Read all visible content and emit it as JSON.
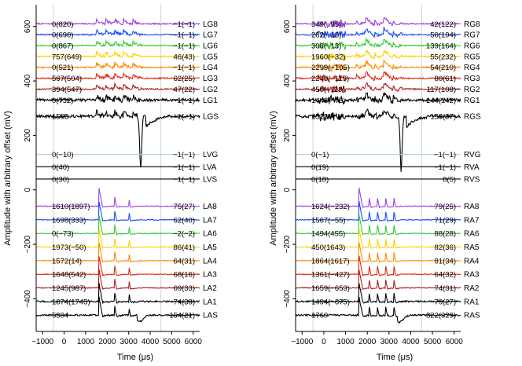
{
  "chart_data": {
    "type": "line",
    "ylabel": "Amplitude with arbitrary offset (mV)",
    "xlim": [
      -1300,
      6300
    ],
    "ylim": [
      -520,
      680
    ],
    "x_ticks": [
      -1000,
      0,
      1000,
      2000,
      3000,
      4000,
      5000,
      6000
    ],
    "x_tick_labels": [
      "−1000",
      "0",
      "1000",
      "2000",
      "3000",
      "4000",
      "5000",
      "6000"
    ],
    "y_ticks": [
      -400,
      -200,
      0,
      200,
      400,
      600
    ],
    "y_tick_labels": [
      "−400",
      "−200",
      "0",
      "200",
      "400",
      "600"
    ],
    "vertical_gridlines": [
      -500,
      4500
    ],
    "panels": [
      {
        "name": "left",
        "xlabel": "Time (μs)",
        "channels": [
          {
            "name": "LG8",
            "offset": 610,
            "color": "#a040e0",
            "left": "0(820)",
            "right": "−1(−1)"
          },
          {
            "name": "LG7",
            "offset": 570,
            "color": "#1a4cff",
            "left": "0(690)",
            "right": "−1(−1)"
          },
          {
            "name": "LG6",
            "offset": 530,
            "color": "#33cc33",
            "left": "0(867)",
            "right": "−1(−1)"
          },
          {
            "name": "LG5",
            "offset": 490,
            "color": "#ffd200",
            "left": "757(649)",
            "right": "46(43)"
          },
          {
            "name": "LG4",
            "offset": 450,
            "color": "#ff8c00",
            "left": "0(521)",
            "right": "−1(−1)"
          },
          {
            "name": "LG3",
            "offset": 410,
            "color": "#e02a10",
            "left": "567(504)",
            "right": "62(25)"
          },
          {
            "name": "LG2",
            "offset": 370,
            "color": "#b02020",
            "left": "394(547)",
            "right": "47(22)"
          },
          {
            "name": "LG1",
            "offset": 330,
            "color": "#000000",
            "left": "0(732)",
            "right": "−1(−1)"
          },
          {
            "name": "LGS",
            "offset": 270,
            "color": "#000000",
            "left": "1565",
            "right": "−1(−1)"
          },
          {
            "name": "LVG",
            "offset": 130,
            "color": "#a8cfe8",
            "left": "0(−10)",
            "right": "−1(−1)"
          },
          {
            "name": "LVA",
            "offset": 85,
            "color": "#000000",
            "left": "0(40)",
            "right": "−1(−1)"
          },
          {
            "name": "LVS",
            "offset": 40,
            "color": "#000000",
            "left": "0(30)",
            "right": "−1(−1)"
          },
          {
            "name": "LA8",
            "offset": -60,
            "color": "#a040e0",
            "left": "1610(1897)",
            "right": "75(27)"
          },
          {
            "name": "LA7",
            "offset": -110,
            "color": "#1a4cff",
            "left": "1698(333)",
            "right": "62(40)"
          },
          {
            "name": "LA6",
            "offset": -160,
            "color": "#33cc33",
            "left": "0(−73)",
            "right": "−2(−2)"
          },
          {
            "name": "LA5",
            "offset": -210,
            "color": "#ffd200",
            "left": "1973(−50)",
            "right": "86(41)"
          },
          {
            "name": "LA4",
            "offset": -260,
            "color": "#ff8c00",
            "left": "1572(14)",
            "right": "64(31)"
          },
          {
            "name": "LA3",
            "offset": -310,
            "color": "#e02a10",
            "left": "1648(542)",
            "right": "68(16)"
          },
          {
            "name": "LA2",
            "offset": -360,
            "color": "#b02020",
            "left": "1245(987)",
            "right": "69(33)"
          },
          {
            "name": "LA1",
            "offset": -410,
            "color": "#000000",
            "left": "1674(1745)",
            "right": "74(38)"
          },
          {
            "name": "LAS",
            "offset": -460,
            "color": "#000000",
            "left": "5394",
            "right": "154(21)"
          }
        ]
      },
      {
        "name": "right",
        "xlabel": "Time (μs)",
        "channels": [
          {
            "name": "RG8",
            "offset": 610,
            "color": "#a040e0",
            "left": "349(−95)",
            "right": "42(122)"
          },
          {
            "name": "RG7",
            "offset": 570,
            "color": "#1a4cff",
            "left": "282(−13)",
            "right": "50(194)"
          },
          {
            "name": "RG6",
            "offset": 530,
            "color": "#33cc33",
            "left": "308(−13)",
            "right": "139(164)"
          },
          {
            "name": "RG5",
            "offset": 490,
            "color": "#ffd200",
            "left": "1960(−32)",
            "right": "55(232)"
          },
          {
            "name": "RG4",
            "offset": 450,
            "color": "#ff8c00",
            "left": "2299(−105)",
            "right": "54(210)"
          },
          {
            "name": "RG3",
            "offset": 410,
            "color": "#e02a10",
            "left": "2240(−119)",
            "right": "80(61)"
          },
          {
            "name": "RG2",
            "offset": 370,
            "color": "#b02020",
            "left": "450(−119)",
            "right": "117(108)"
          },
          {
            "name": "RG1",
            "offset": 330,
            "color": "#000000",
            "left": "1448(−73)",
            "right": "144(142)"
          },
          {
            "name": "RGS",
            "offset": 270,
            "color": "#000000",
            "left": "1523",
            "right": "150(97)"
          },
          {
            "name": "RVG",
            "offset": 130,
            "color": "#a8cfe8",
            "left": "0(−1)",
            "right": "−1(−1)"
          },
          {
            "name": "RVA",
            "offset": 85,
            "color": "#000000",
            "left": "0(19)",
            "right": "−1(−1)"
          },
          {
            "name": "RVS",
            "offset": 40,
            "color": "#000000",
            "left": "0(18)",
            "right": "8(5)"
          },
          {
            "name": "RA8",
            "offset": -60,
            "color": "#a040e0",
            "left": "1624(−232)",
            "right": "79(25)"
          },
          {
            "name": "RA7",
            "offset": -110,
            "color": "#1a4cff",
            "left": "1567(−55)",
            "right": "71(29)"
          },
          {
            "name": "RA6",
            "offset": -160,
            "color": "#33cc33",
            "left": "1494(455)",
            "right": "88(28)"
          },
          {
            "name": "RA5",
            "offset": -210,
            "color": "#ffd200",
            "left": "450(1643)",
            "right": "82(36)"
          },
          {
            "name": "RA4",
            "offset": -260,
            "color": "#ff8c00",
            "left": "1864(1617)",
            "right": "81(34)"
          },
          {
            "name": "RA3",
            "offset": -310,
            "color": "#e02a10",
            "left": "1361(−427)",
            "right": "64(32)"
          },
          {
            "name": "RA2",
            "offset": -360,
            "color": "#b02020",
            "left": "1659(−653)",
            "right": "74(31)"
          },
          {
            "name": "RA1",
            "offset": -410,
            "color": "#000000",
            "left": "1494(−675)",
            "right": "79(27)"
          },
          {
            "name": "RAS",
            "offset": -460,
            "color": "#000000",
            "left": "1760",
            "right": "322(329)"
          }
        ]
      }
    ]
  }
}
